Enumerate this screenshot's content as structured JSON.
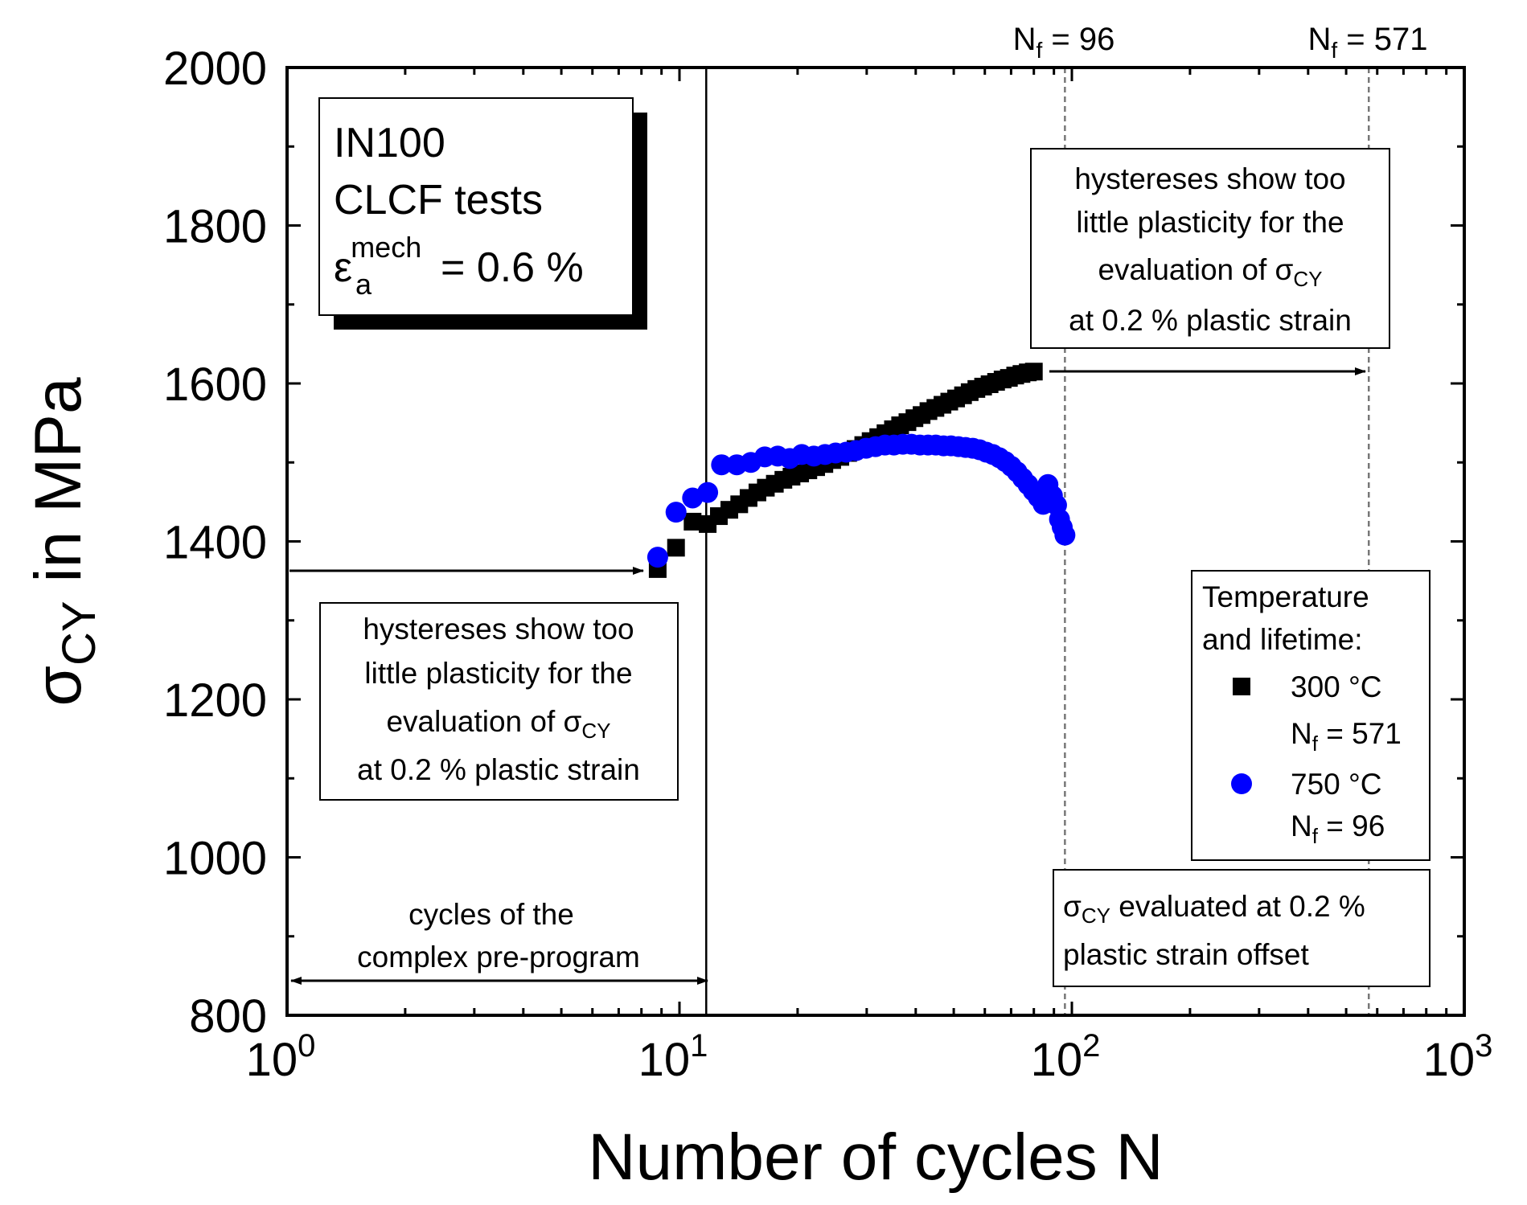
{
  "chart_data": {
    "type": "scatter",
    "xscale": "log",
    "xlim": [
      1,
      1000
    ],
    "ylim": [
      800,
      2000
    ],
    "xlabel": "Number of cycles N",
    "ylabel": {
      "main": "σ",
      "sub": "CY",
      "rest": " in MPa"
    },
    "xticks": [
      {
        "value": 1,
        "base": "10",
        "exp": "0"
      },
      {
        "value": 10,
        "base": "10",
        "exp": "1"
      },
      {
        "value": 100,
        "base": "10",
        "exp": "2"
      },
      {
        "value": 1000,
        "base": "10",
        "exp": "3"
      }
    ],
    "yticks": [
      800,
      1000,
      1200,
      1400,
      1600,
      1800,
      2000
    ],
    "series": [
      {
        "name": "300 °C",
        "lifetime_label": {
          "main": "N",
          "sub": "f",
          "rest": " = 571"
        },
        "marker": "square",
        "color": "#000000",
        "points": [
          [
            8.8,
            1365
          ],
          [
            9.8,
            1392
          ],
          [
            10.8,
            1425
          ],
          [
            11.8,
            1422
          ],
          [
            12.6,
            1432
          ],
          [
            13.4,
            1440
          ],
          [
            14.2,
            1447
          ],
          [
            15.0,
            1455
          ],
          [
            15.8,
            1462
          ],
          [
            16.6,
            1468
          ],
          [
            17.5,
            1473
          ],
          [
            18.4,
            1478
          ],
          [
            19.3,
            1482
          ],
          [
            20.3,
            1486
          ],
          [
            21.3,
            1490
          ],
          [
            22.3,
            1494
          ],
          [
            23.4,
            1498
          ],
          [
            24.5,
            1503
          ],
          [
            25.7,
            1507
          ],
          [
            26.9,
            1512
          ],
          [
            28.1,
            1517
          ],
          [
            29.4,
            1522
          ],
          [
            30.7,
            1527
          ],
          [
            32.1,
            1532
          ],
          [
            33.5,
            1537
          ],
          [
            35.0,
            1542
          ],
          [
            36.5,
            1547
          ],
          [
            38.1,
            1551
          ],
          [
            39.7,
            1556
          ],
          [
            41.4,
            1560
          ],
          [
            43.1,
            1565
          ],
          [
            44.9,
            1569
          ],
          [
            46.8,
            1573
          ],
          [
            48.7,
            1577
          ],
          [
            50.7,
            1581
          ],
          [
            52.8,
            1585
          ],
          [
            54.9,
            1589
          ],
          [
            57.1,
            1593
          ],
          [
            59.4,
            1596
          ],
          [
            61.7,
            1599
          ],
          [
            64.1,
            1602
          ],
          [
            66.6,
            1605
          ],
          [
            69.1,
            1607
          ],
          [
            71.7,
            1610
          ],
          [
            74.4,
            1612
          ],
          [
            77.2,
            1614
          ],
          [
            80.0,
            1615
          ]
        ]
      },
      {
        "name": "750 °C",
        "lifetime_label": {
          "main": "N",
          "sub": "f",
          "rest": " = 96"
        },
        "marker": "circle",
        "color": "#0000ff",
        "points": [
          [
            8.8,
            1380
          ],
          [
            9.8,
            1437
          ],
          [
            10.8,
            1455
          ],
          [
            11.8,
            1462
          ],
          [
            12.8,
            1497
          ],
          [
            14.0,
            1497
          ],
          [
            15.2,
            1500
          ],
          [
            16.5,
            1507
          ],
          [
            17.8,
            1508
          ],
          [
            19.1,
            1505
          ],
          [
            20.5,
            1510
          ],
          [
            22.0,
            1508
          ],
          [
            23.5,
            1510
          ],
          [
            25.0,
            1512
          ],
          [
            26.6,
            1513
          ],
          [
            28.2,
            1515
          ],
          [
            29.9,
            1518
          ],
          [
            31.6,
            1520
          ],
          [
            33.4,
            1522
          ],
          [
            35.2,
            1522
          ],
          [
            37.1,
            1523
          ],
          [
            39.0,
            1523
          ],
          [
            41.0,
            1522
          ],
          [
            43.0,
            1522
          ],
          [
            45.0,
            1522
          ],
          [
            47.1,
            1521
          ],
          [
            49.2,
            1521
          ],
          [
            51.4,
            1520
          ],
          [
            53.6,
            1519
          ],
          [
            55.9,
            1518
          ],
          [
            58.2,
            1516
          ],
          [
            60.5,
            1513
          ],
          [
            62.9,
            1510
          ],
          [
            65.3,
            1506
          ],
          [
            67.7,
            1501
          ],
          [
            70.1,
            1495
          ],
          [
            72.5,
            1488
          ],
          [
            74.9,
            1480
          ],
          [
            77.3,
            1472
          ],
          [
            79.7,
            1464
          ],
          [
            82.1,
            1456
          ],
          [
            84.5,
            1447
          ],
          [
            86.9,
            1472
          ],
          [
            89.2,
            1458
          ],
          [
            91.4,
            1446
          ],
          [
            93.0,
            1428
          ],
          [
            94.5,
            1418
          ],
          [
            96.0,
            1408
          ]
        ]
      }
    ],
    "vlines": [
      {
        "x": 11.7,
        "style": "solid"
      },
      {
        "x": 96,
        "style": "dashed",
        "label": {
          "main": "N",
          "sub": "f",
          "rest": " = 96"
        }
      },
      {
        "x": 571,
        "style": "dashed",
        "label": {
          "main": "N",
          "sub": "f",
          "rest": " = 571"
        }
      }
    ]
  },
  "annotations": {
    "material_box": {
      "line1": "IN100",
      "line2": "CLCF tests",
      "strain_main": "ε",
      "strain_sup": "mech",
      "strain_sub": "a",
      "strain_rest": " = 0.6 %"
    },
    "left_note": {
      "line1": "hystereses show too",
      "line2": "little plasticity for the",
      "line3": "evaluation of σ",
      "line3_sub": "CY",
      "line4": "at 0.2 % plastic strain"
    },
    "right_note": {
      "line1": "hystereses show too",
      "line2": "little plasticity for the",
      "line3": "evaluation of σ",
      "line3_sub": "CY",
      "line4": "at 0.2 % plastic strain"
    },
    "preprogram": {
      "line1": "cycles of the",
      "line2": "complex pre-program"
    },
    "legend": {
      "title1": "Temperature",
      "title2": "and lifetime:"
    },
    "eval_note": {
      "sym": "σ",
      "sub": "CY",
      "line1_rest": " evaluated at 0.2 %",
      "line2": "plastic strain offset"
    }
  }
}
